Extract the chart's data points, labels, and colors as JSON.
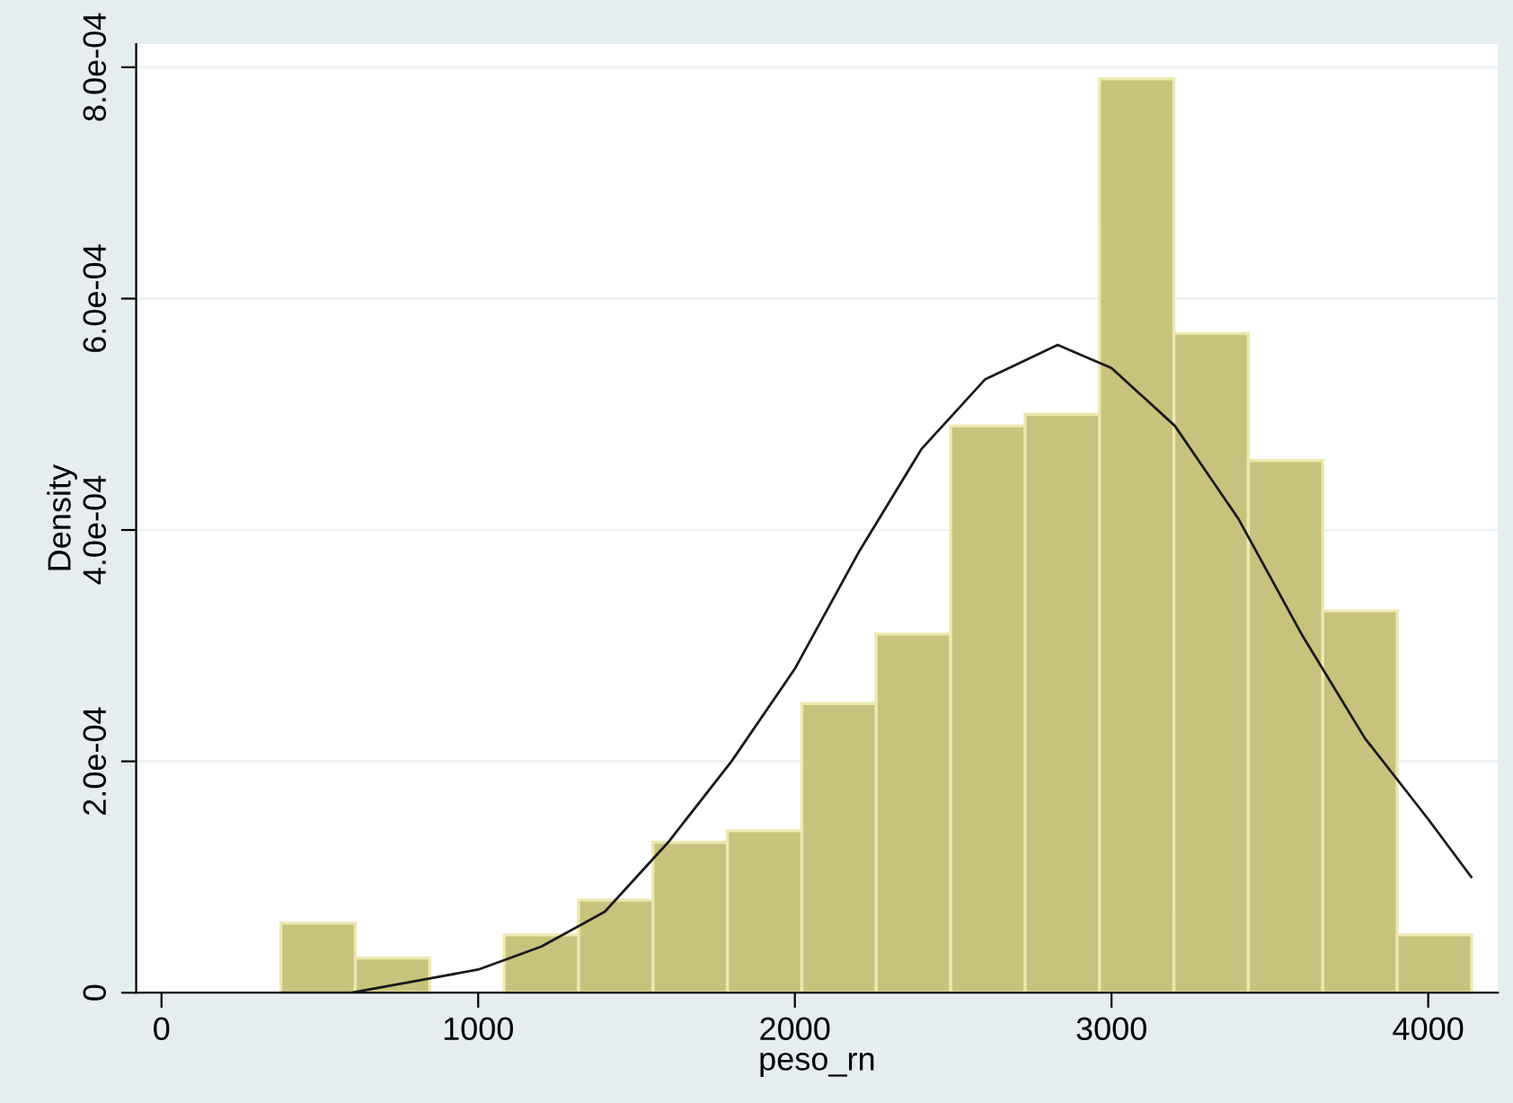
{
  "chart_data": {
    "type": "histogram",
    "xlabel": "peso_rn",
    "ylabel": "Density",
    "bins": [
      377,
      612,
      847,
      1082,
      1317,
      1552,
      1787,
      2022,
      2257,
      2492,
      2727,
      2962,
      3197,
      3432,
      3667,
      3902,
      4137
    ],
    "values": [
      6e-05,
      3e-05,
      0,
      5e-05,
      8e-05,
      0.00013,
      0.00014,
      0.00025,
      0.00031,
      0.00049,
      0.0005,
      0.00079,
      0.00057,
      0.00046,
      0.00033,
      5e-05
    ],
    "color": "#c9c27c",
    "series": [
      {
        "type": "line",
        "color": "#1a1a1a",
        "x": [
          380,
          600,
          800,
          1000,
          1200,
          1400,
          1600,
          1800,
          2000,
          2200,
          2400,
          2600,
          2830,
          3000,
          3200,
          3400,
          3600,
          3800,
          4000,
          4136
        ],
        "values": [
          0,
          0,
          1e-05,
          2e-05,
          4e-05,
          7e-05,
          0.00013,
          0.0002,
          0.00028,
          0.00038,
          0.00047,
          0.00053,
          0.00056,
          0.00054,
          0.00049,
          0.00041,
          0.00031,
          0.00022,
          0.00015,
          0.0001
        ]
      }
    ],
    "xlim": [
      -80,
      4220
    ],
    "ylim": [
      0,
      0.00082
    ],
    "xticks": [
      0,
      1000,
      2000,
      3000,
      4000
    ],
    "yticks": [
      {
        "value": 0,
        "label": "0"
      },
      {
        "value": 0.0002,
        "label": "2.0e-04"
      },
      {
        "value": 0.0004,
        "label": "4.0e-04"
      },
      {
        "value": 0.0006,
        "label": "6.0e-04"
      },
      {
        "value": 0.0008,
        "label": "8.0e-04"
      }
    ],
    "grid": "y",
    "legend": false
  }
}
